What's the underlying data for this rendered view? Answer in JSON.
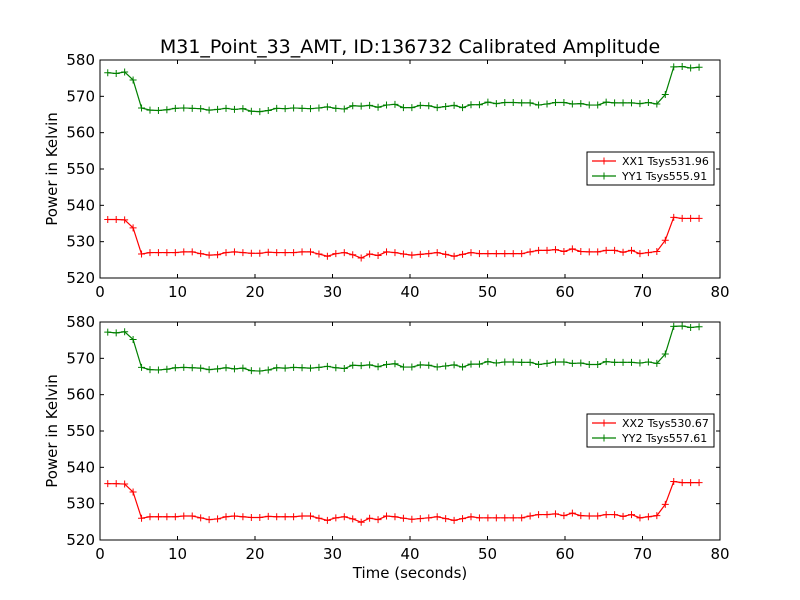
{
  "chart_data": [
    {
      "type": "line",
      "title": "M31_Point_33_AMT, ID:136732 Calibrated Amplitude",
      "xlabel": "",
      "ylabel": "Power in Kelvin",
      "xlim": [
        0,
        80
      ],
      "ylim": [
        520,
        580
      ],
      "xticks": [
        "0",
        "10",
        "20",
        "30",
        "40",
        "50",
        "60",
        "70",
        "80"
      ],
      "yticks": [
        "520",
        "530",
        "540",
        "550",
        "560",
        "570",
        "580"
      ],
      "t_range": [
        1.0,
        77.3
      ],
      "legend_position": "center-right",
      "series": [
        {
          "name": "XX1 Tsys531.96",
          "color": "#ff0000",
          "values": [
            536.1,
            536.1,
            536.0,
            533.8,
            526.6,
            527.0,
            527.0,
            527.0,
            527.0,
            527.2,
            527.2,
            526.7,
            526.3,
            526.4,
            527.0,
            527.2,
            527.0,
            526.8,
            526.8,
            527.1,
            527.0,
            527.0,
            527.0,
            527.2,
            527.2,
            526.6,
            526.0,
            526.7,
            527.0,
            526.4,
            525.5,
            526.6,
            526.2,
            527.2,
            527.0,
            526.6,
            526.3,
            526.5,
            526.7,
            527.0,
            526.5,
            526.0,
            526.5,
            527.0,
            526.7,
            526.7,
            526.7,
            526.7,
            526.7,
            526.7,
            527.2,
            527.6,
            527.6,
            527.8,
            527.3,
            528.0,
            527.3,
            527.2,
            527.2,
            527.6,
            527.6,
            527.1,
            527.6,
            526.7,
            527.0,
            527.3,
            530.4,
            536.7,
            536.4,
            536.4,
            536.4
          ]
        },
        {
          "name": "YY1 Tsys555.91",
          "color": "#008000",
          "values": [
            576.5,
            576.3,
            576.7,
            574.5,
            566.8,
            566.2,
            566.1,
            566.3,
            566.7,
            566.8,
            566.7,
            566.6,
            566.2,
            566.4,
            566.7,
            566.4,
            566.6,
            565.9,
            565.8,
            566.1,
            566.7,
            566.6,
            566.8,
            566.7,
            566.6,
            566.8,
            567.1,
            566.7,
            566.5,
            567.4,
            567.3,
            567.5,
            567.0,
            567.6,
            567.8,
            566.9,
            566.9,
            567.5,
            567.4,
            566.9,
            567.2,
            567.5,
            566.9,
            567.7,
            567.7,
            568.4,
            568.0,
            568.3,
            568.3,
            568.2,
            568.2,
            567.6,
            567.9,
            568.3,
            568.3,
            567.9,
            568.0,
            567.6,
            567.6,
            568.4,
            568.2,
            568.2,
            568.2,
            568.0,
            568.3,
            567.9,
            570.5,
            578.1,
            578.2,
            577.8,
            578.0
          ]
        }
      ]
    },
    {
      "type": "line",
      "title": "",
      "xlabel": "Time (seconds)",
      "ylabel": "Power in Kelvin",
      "xlim": [
        0,
        80
      ],
      "ylim": [
        520,
        580
      ],
      "xticks": [
        "0",
        "10",
        "20",
        "30",
        "40",
        "50",
        "60",
        "70",
        "80"
      ],
      "yticks": [
        "520",
        "530",
        "540",
        "550",
        "560",
        "570",
        "580"
      ],
      "t_range": [
        1.0,
        77.3
      ],
      "legend_position": "center-right",
      "series": [
        {
          "name": "XX2 Tsys530.67",
          "color": "#ff0000",
          "values": [
            535.5,
            535.5,
            535.4,
            533.2,
            526.0,
            526.4,
            526.4,
            526.4,
            526.4,
            526.6,
            526.6,
            526.1,
            525.6,
            525.8,
            526.4,
            526.6,
            526.4,
            526.2,
            526.2,
            526.5,
            526.4,
            526.4,
            526.4,
            526.6,
            526.6,
            526.0,
            525.4,
            526.1,
            526.4,
            525.8,
            524.9,
            526.0,
            525.6,
            526.6,
            526.4,
            526.0,
            525.7,
            525.9,
            526.1,
            526.4,
            525.9,
            525.4,
            525.9,
            526.4,
            526.1,
            526.1,
            526.1,
            526.1,
            526.1,
            526.1,
            526.6,
            527.0,
            527.0,
            527.2,
            526.7,
            527.4,
            526.7,
            526.6,
            526.6,
            527.0,
            527.0,
            526.5,
            527.0,
            526.1,
            526.4,
            526.7,
            529.8,
            536.1,
            535.8,
            535.8,
            535.8
          ]
        },
        {
          "name": "YY2 Tsys557.61",
          "color": "#008000",
          "values": [
            577.2,
            577.0,
            577.3,
            575.2,
            567.5,
            566.9,
            566.8,
            567.0,
            567.4,
            567.5,
            567.4,
            567.3,
            566.9,
            567.1,
            567.4,
            567.1,
            567.3,
            566.6,
            566.5,
            566.8,
            567.4,
            567.3,
            567.5,
            567.4,
            567.3,
            567.5,
            567.8,
            567.4,
            567.2,
            568.1,
            568.0,
            568.2,
            567.7,
            568.3,
            568.5,
            567.6,
            567.6,
            568.2,
            568.1,
            567.6,
            567.9,
            568.2,
            567.6,
            568.4,
            568.4,
            569.1,
            568.7,
            569.0,
            569.0,
            568.9,
            568.9,
            568.3,
            568.6,
            569.0,
            569.0,
            568.6,
            568.7,
            568.3,
            568.3,
            569.1,
            568.9,
            568.9,
            568.9,
            568.7,
            569.0,
            568.6,
            571.2,
            578.8,
            578.9,
            578.5,
            578.7
          ]
        }
      ]
    }
  ]
}
